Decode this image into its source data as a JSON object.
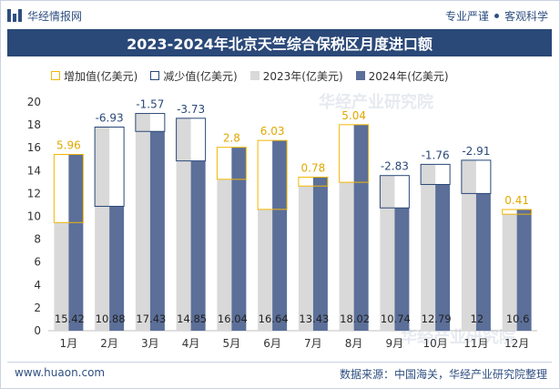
{
  "header": {
    "logo_text": "华经情报网",
    "tag1": "专业严谨",
    "tag2": "客观科学"
  },
  "footer": {
    "url": "www.huaon.com",
    "source": "数据来源：中国海关，华经产业研究院整理"
  },
  "watermark": "华经产业研究院",
  "colors": {
    "increase": "#f2b705",
    "decrease": "#2a4878",
    "y2023": "#d9d9d9",
    "y2024": "#5b6f99",
    "title_bg": "#2a4878"
  },
  "chart_data": {
    "type": "bar",
    "title": "2023-2024年北京天竺综合保税区月度进口额",
    "categories": [
      "1月",
      "2月",
      "3月",
      "4月",
      "5月",
      "6月",
      "7月",
      "8月",
      "9月",
      "10月",
      "11月",
      "12月"
    ],
    "series": [
      {
        "name": "2023年(亿美元)",
        "values": [
          9.46,
          17.81,
          19.0,
          18.58,
          13.24,
          10.61,
          12.65,
          12.98,
          13.57,
          14.55,
          14.91,
          10.19
        ]
      },
      {
        "name": "2024年(亿美元)",
        "values": [
          15.42,
          10.88,
          17.43,
          14.85,
          16.04,
          16.64,
          13.43,
          18.02,
          10.74,
          12.79,
          12,
          10.6
        ]
      }
    ],
    "change_legend": {
      "increase": "增加值(亿美元)",
      "decrease": "减少值(亿美元)"
    },
    "changes": [
      "5.96",
      "-6.93",
      "-1.57",
      "-3.73",
      "2.8",
      "6.03",
      "0.78",
      "5.04",
      "-2.83",
      "-1.76",
      "-2.91",
      "0.41"
    ],
    "bar_labels": [
      "15.42",
      "10.88",
      "17.43",
      "14.85",
      "16.04",
      "16.64",
      "13.43",
      "18.02",
      "10.74",
      "12.79",
      "12",
      "10.6"
    ],
    "ylim": [
      0,
      20
    ],
    "yticks": [
      "0",
      "2",
      "4",
      "6",
      "8",
      "10",
      "12",
      "14",
      "16",
      "18",
      "20"
    ],
    "grid": false,
    "legend_position": "top"
  }
}
